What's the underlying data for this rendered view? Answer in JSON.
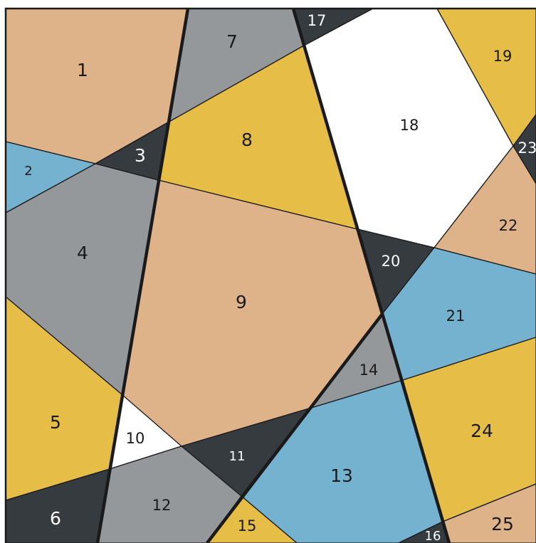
{
  "colors": {
    "tan": "#dfb38a",
    "blue": "#75b2cf",
    "gray": "#94989b",
    "yellow": "#e6be47",
    "dark": "#363b3f",
    "white": "#ffffff",
    "border": "#1a1a1a"
  },
  "regions": [
    {
      "label": "1",
      "color": "tan"
    },
    {
      "label": "2",
      "color": "blue"
    },
    {
      "label": "3",
      "color": "dark"
    },
    {
      "label": "4",
      "color": "gray"
    },
    {
      "label": "5",
      "color": "yellow"
    },
    {
      "label": "6",
      "color": "dark"
    },
    {
      "label": "7",
      "color": "gray"
    },
    {
      "label": "8",
      "color": "yellow"
    },
    {
      "label": "9",
      "color": "tan"
    },
    {
      "label": "10",
      "color": "white"
    },
    {
      "label": "11",
      "color": "dark"
    },
    {
      "label": "12",
      "color": "gray"
    },
    {
      "label": "13",
      "color": "blue"
    },
    {
      "label": "14",
      "color": "gray"
    },
    {
      "label": "15",
      "color": "yellow"
    },
    {
      "label": "16",
      "color": "dark"
    },
    {
      "label": "17",
      "color": "dark"
    },
    {
      "label": "18",
      "color": "white"
    },
    {
      "label": "19",
      "color": "yellow"
    },
    {
      "label": "20",
      "color": "dark"
    },
    {
      "label": "21",
      "color": "blue"
    },
    {
      "label": "22",
      "color": "tan"
    },
    {
      "label": "23",
      "color": "dark"
    },
    {
      "label": "24",
      "color": "yellow"
    },
    {
      "label": "25",
      "color": "tan"
    }
  ]
}
